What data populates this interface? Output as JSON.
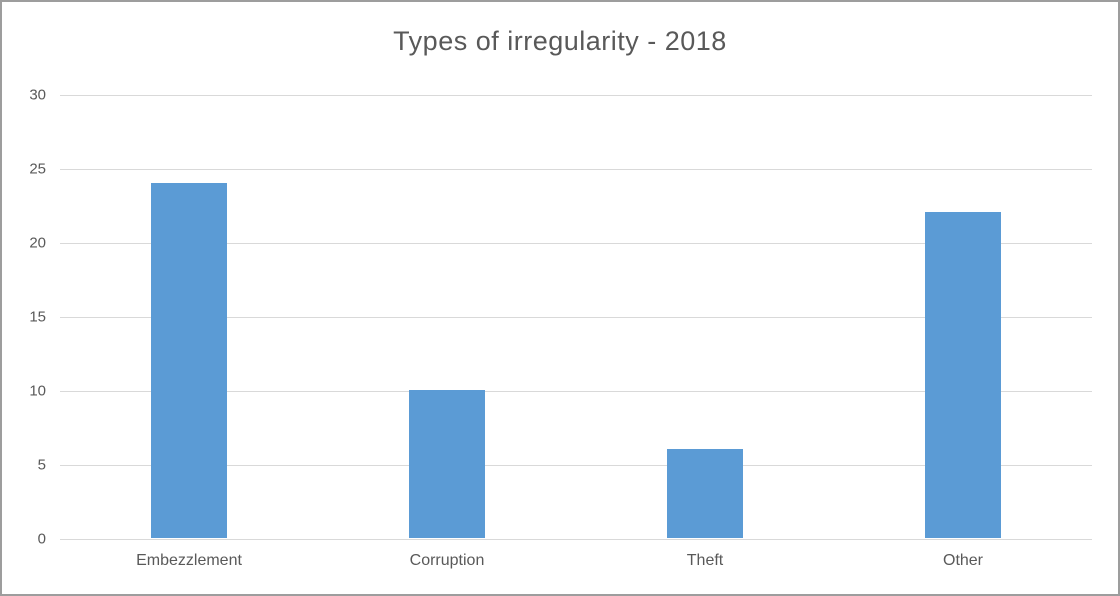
{
  "chart": {
    "title": "Types of irregularity - 2018"
  },
  "chart_data": {
    "type": "bar",
    "title": "Types of irregularity - 2018",
    "categories": [
      "Embezzlement",
      "Corruption",
      "Theft",
      "Other"
    ],
    "values": [
      24,
      10,
      6,
      22
    ],
    "xlabel": "",
    "ylabel": "",
    "ylim": [
      0,
      30
    ],
    "yticks": [
      0,
      5,
      10,
      15,
      20,
      25,
      30
    ],
    "grid": true,
    "legend_position": "none",
    "bar_color": "#5b9bd5",
    "gridline_color": "#d9d9d9",
    "text_color": "#595959",
    "background_color": "#ffffff"
  }
}
